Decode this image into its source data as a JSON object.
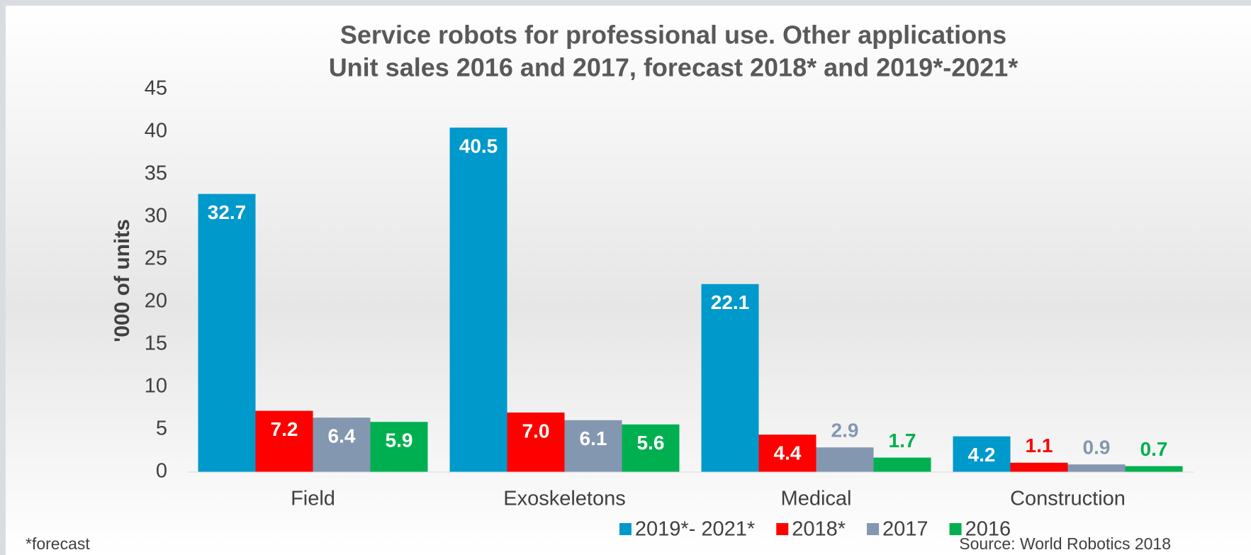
{
  "chart_data": {
    "type": "bar",
    "title": "Service robots for professional use. Other applications",
    "subtitle": "Unit sales 2016 and 2017, forecast 2018* and 2019*-2021*",
    "y_label": "'000 of units",
    "categories": [
      "Field",
      "Exoskeletons",
      "Medical",
      "Construction"
    ],
    "series": [
      {
        "name": "2019*- 2021*",
        "color": "#0099cc",
        "values": [
          32.7,
          40.5,
          22.1,
          4.2
        ],
        "value_labels": [
          "32.7",
          "40.5",
          "22.1",
          "4.2"
        ]
      },
      {
        "name": "2018*",
        "color": "#ff0000",
        "values": [
          7.2,
          7.0,
          4.4,
          1.1
        ],
        "value_labels": [
          "7.2",
          "7.0",
          "4.4",
          "1.1"
        ]
      },
      {
        "name": "2017",
        "color": "#8497b0",
        "values": [
          6.4,
          6.1,
          2.9,
          0.9
        ],
        "value_labels": [
          "6.4",
          "6.1",
          "2.9",
          "0.9"
        ]
      },
      {
        "name": "2016",
        "color": "#00b050",
        "values": [
          5.9,
          5.6,
          1.7,
          0.7
        ],
        "value_labels": [
          "5.9",
          "5.6",
          "1.7",
          "0.7"
        ]
      }
    ],
    "ylim": [
      0,
      45
    ],
    "yticks": [
      0,
      5,
      10,
      15,
      20,
      25,
      30,
      35,
      40,
      45
    ],
    "grid": false,
    "legend": "bottom",
    "footnote": "*forecast",
    "source": "Source: World Robotics 2018"
  }
}
